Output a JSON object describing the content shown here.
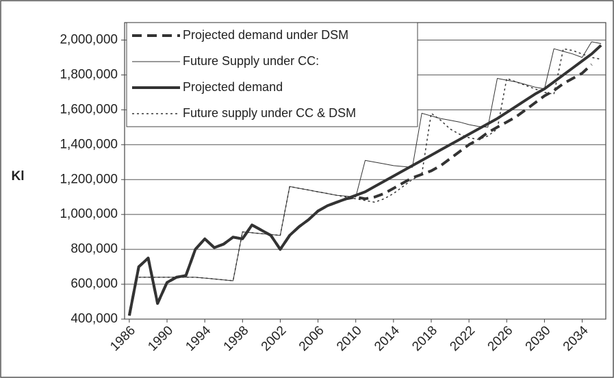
{
  "chart_data": {
    "type": "line",
    "y_axis_label": "Kl",
    "x": [
      1986,
      1987,
      1988,
      1989,
      1990,
      1991,
      1992,
      1993,
      1994,
      1995,
      1996,
      1997,
      1998,
      1999,
      2000,
      2001,
      2002,
      2003,
      2004,
      2005,
      2006,
      2007,
      2008,
      2009,
      2010,
      2011,
      2012,
      2013,
      2014,
      2015,
      2016,
      2017,
      2018,
      2019,
      2020,
      2021,
      2022,
      2023,
      2024,
      2025,
      2026,
      2027,
      2028,
      2029,
      2030,
      2031,
      2032,
      2033,
      2034,
      2035,
      2036
    ],
    "xlim": [
      1985.5,
      2036.5
    ],
    "xticks": [
      1986,
      1990,
      1994,
      1998,
      2002,
      2006,
      2010,
      2014,
      2018,
      2022,
      2026,
      2030,
      2034
    ],
    "ylim": [
      400000,
      2100000
    ],
    "yticks": [
      {
        "value": 400000,
        "label": "400,000"
      },
      {
        "value": 600000,
        "label": "600,000"
      },
      {
        "value": 800000,
        "label": "800,000"
      },
      {
        "value": 1000000,
        "label": "1,000,000"
      },
      {
        "value": 1200000,
        "label": "1,200,000"
      },
      {
        "value": 1400000,
        "label": "1,400,000"
      },
      {
        "value": 1600000,
        "label": "1,600,000"
      },
      {
        "value": 1800000,
        "label": "1,800,000"
      },
      {
        "value": 2000000,
        "label": "2,000,000"
      }
    ],
    "grid": true,
    "legend": "upper left",
    "series": [
      {
        "name": "Projected demand under DSM",
        "color": "#333333",
        "line_style": "dashed",
        "line_width": 4,
        "values": [
          420000,
          700000,
          750000,
          490000,
          610000,
          640000,
          650000,
          800000,
          860000,
          810000,
          830000,
          870000,
          860000,
          940000,
          910000,
          880000,
          800000,
          880000,
          930000,
          970000,
          1020000,
          1050000,
          1070000,
          1090000,
          1100000,
          1090000,
          1100000,
          1120000,
          1150000,
          1180000,
          1210000,
          1230000,
          1250000,
          1280000,
          1320000,
          1360000,
          1400000,
          1430000,
          1470000,
          1500000,
          1530000,
          1560000,
          1600000,
          1640000,
          1680000,
          1710000,
          1750000,
          1780000,
          1810000,
          1860000,
          null
        ]
      },
      {
        "name": "Future Supply under CC:",
        "color": "#333333",
        "line_style": "solid",
        "line_width": 1,
        "values": [
          null,
          640000,
          640000,
          640000,
          640000,
          640000,
          640000,
          640000,
          635000,
          630000,
          625000,
          620000,
          900000,
          895000,
          890000,
          885000,
          880000,
          1160000,
          1150000,
          1140000,
          1130000,
          1120000,
          1110000,
          1105000,
          1100000,
          1310000,
          1300000,
          1290000,
          1280000,
          1275000,
          1270000,
          1580000,
          1565000,
          1550000,
          1540000,
          1530000,
          1515000,
          1505000,
          1500000,
          1780000,
          1770000,
          1760000,
          1745000,
          1730000,
          1720000,
          1950000,
          1935000,
          1920000,
          1900000,
          1990000,
          1980000
        ]
      },
      {
        "name": "Projected demand",
        "color": "#333333",
        "line_style": "solid",
        "line_width": 4,
        "values": [
          420000,
          700000,
          750000,
          490000,
          610000,
          640000,
          650000,
          800000,
          860000,
          810000,
          830000,
          870000,
          860000,
          940000,
          910000,
          880000,
          800000,
          880000,
          930000,
          970000,
          1020000,
          1050000,
          1070000,
          1090000,
          1110000,
          1130000,
          1160000,
          1190000,
          1220000,
          1250000,
          1280000,
          1310000,
          1340000,
          1370000,
          1400000,
          1430000,
          1460000,
          1490000,
          1520000,
          1550000,
          1585000,
          1620000,
          1655000,
          1690000,
          1720000,
          1760000,
          1800000,
          1840000,
          1880000,
          1920000,
          1970000
        ]
      },
      {
        "name": "Future supply under CC & DSM",
        "color": "#333333",
        "line_style": "dotted",
        "line_width": 1.5,
        "values": [
          null,
          640000,
          640000,
          640000,
          640000,
          640000,
          640000,
          640000,
          635000,
          630000,
          625000,
          620000,
          900000,
          895000,
          890000,
          885000,
          880000,
          1160000,
          1150000,
          1140000,
          1130000,
          1120000,
          1110000,
          1100000,
          1090000,
          1080000,
          1070000,
          1090000,
          1120000,
          1160000,
          1200000,
          1230000,
          1580000,
          1540000,
          1490000,
          1460000,
          1440000,
          1430000,
          1450000,
          1490000,
          1780000,
          1760000,
          1740000,
          1720000,
          1700000,
          1690000,
          1950000,
          1940000,
          1920000,
          1900000,
          1890000
        ]
      }
    ]
  }
}
